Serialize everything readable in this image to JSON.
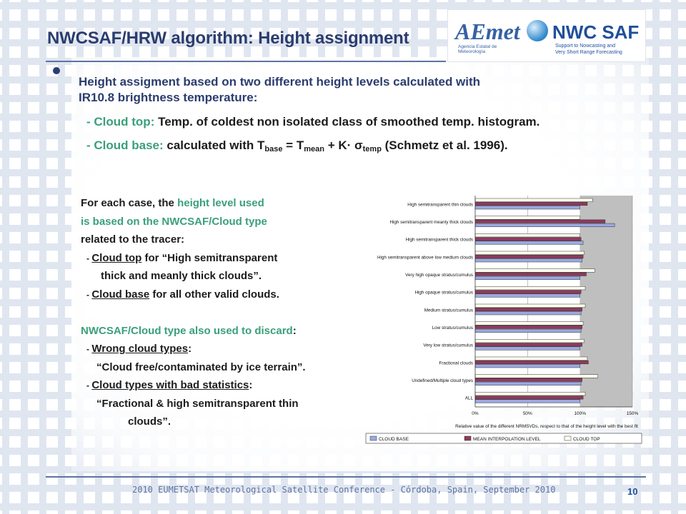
{
  "slide": {
    "title": "NWCSAF/HRW algorithm: Height assignment",
    "bullet": {
      "line1": "Height assigment based on two different height levels calculated with",
      "line2": "IR10.8 brightness temperature:"
    },
    "items": [
      {
        "prefix": "- Cloud top:",
        "text": " Temp. of coldest non isolated class of smoothed temp. histogram."
      },
      {
        "prefix": "- Cloud base:",
        "text_a": " calculated with T",
        "sub_a": "base",
        "text_b": " = T",
        "sub_b": "mean",
        "text_c": " + K· σ",
        "sub_c": "temp",
        "text_d": " (Schmetz et al. 1996)."
      }
    ],
    "left_block": {
      "l1a": "For each case, the ",
      "l1b": "height level used",
      "l2": "is based on the NWCSAF/Cloud type",
      "l3": "related to the tracer:",
      "l4dash": "- ",
      "l4a": "Cloud top",
      "l4b": " for “High semitransparent",
      "l5": "thick and meanly thick clouds”.",
      "l6dash": "- ",
      "l6a": "Cloud base",
      "l6b": " for all other valid clouds.",
      "l8a": "NWCSAF/Cloud type also used to discard",
      "l8b": ":",
      "l9dash": "- ",
      "l9a": "Wrong cloud types",
      "l9b": ":",
      "l10": "“Cloud free/contaminated by ice terrain”.",
      "l11dash": "- ",
      "l11a": "Cloud types with bad statistics",
      "l11b": ":",
      "l12": "“Fractional & high semitransparent thin",
      "l13": "clouds”."
    },
    "footer": "2010 EUMETSAT Meteorological Satellite Conference   -   Córdoba, Spain, September 2010",
    "page_number": "10",
    "logos": {
      "aemet": "AEmet",
      "aemet_sub": "Agencia Estatal de Meteorología",
      "nwc": "NWC SAF",
      "nwc_sub1": "Support to Nowcasting and",
      "nwc_sub2": "Very Short Range Forecasting"
    }
  },
  "colors": {
    "title": "#2b3d6e",
    "accent_green": "#3aa07a",
    "cloud_base": "#9aa9e0",
    "mean_interp": "#8e3a5c",
    "cloud_top": "#fffff0",
    "plot_bg": "#bfbfbf"
  },
  "chart_data": {
    "type": "bar",
    "orientation": "horizontal",
    "categories": [
      "High semitransparent thin clouds",
      "High semitransparent meanly thick clouds",
      "High semitransparent thick clouds",
      "High semitransparent above low medium clouds",
      "Very high opaque stratus/cumulus",
      "High opaque stratus/cumulus",
      "Medium stratus/cumulus",
      "Low stratus/cumulus",
      "Very low stratus/cumulus",
      "Fractional clouds",
      "Undefined/Multiple cloud types",
      "ALL"
    ],
    "series": [
      {
        "name": "CLOUD BASE",
        "values": [
          100,
          133,
          103,
          102,
          100,
          100,
          101,
          101,
          100,
          100,
          101,
          100
        ]
      },
      {
        "name": "MEAN INTERPOLATION LEVEL",
        "values": [
          107,
          124,
          101,
          103,
          106,
          101,
          102,
          102,
          102,
          108,
          102,
          103
        ]
      },
      {
        "name": "CLOUD TOP",
        "values": [
          112,
          100,
          100,
          104,
          114,
          105,
          105,
          103,
          104,
          107,
          117,
          105
        ]
      }
    ],
    "xlabel": "Relative value of the different NRMSVDs, respect to that of the height level with the best fit",
    "xticks": [
      "0%",
      "50%",
      "100%",
      "150%"
    ],
    "xlim": [
      0,
      150
    ],
    "grid": true,
    "legend": "bottom"
  }
}
